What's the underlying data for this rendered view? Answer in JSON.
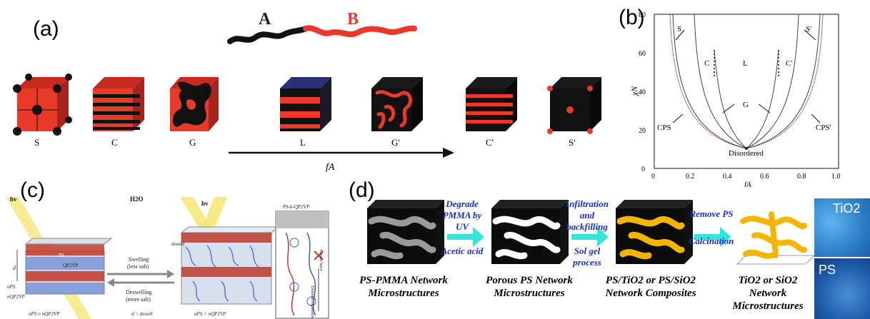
{
  "panels": {
    "a": "(a)",
    "b": "(b)",
    "c": "(c)",
    "d": "(d)"
  },
  "panel_a": {
    "chain_label_a": "A",
    "chain_label_b": "B",
    "cubes": [
      "S",
      "C",
      "G",
      "L",
      "G'",
      "C'",
      "S'"
    ],
    "axis_label": "fA"
  },
  "panel_b": {
    "ylabel": "χN",
    "xlabel": "fA",
    "y_ticks": [
      "0",
      "20",
      "40",
      "60",
      "80"
    ],
    "x_ticks": [
      "0",
      "0.2",
      "0.4",
      "0.6",
      "0.8",
      "1.0"
    ],
    "regions": [
      "S",
      "C",
      "L",
      "C'",
      "S'",
      "G",
      "CPS",
      "CPS'",
      "Disordered"
    ]
  },
  "panel_c": {
    "hv_left": "hv",
    "h2o": "H2O",
    "hv_right": "hv",
    "ps_label": "PS",
    "qp2vp_label": "QP2VP",
    "d_label": "d",
    "dswell_label": "dswell",
    "nps_label": "nPS",
    "nqp2vp_label": "nQP2VP",
    "bottom_left": "nPS ≈ nQP2VP",
    "bottom_mid": "d < dswell",
    "bottom_right": "nPS > nQP2VP",
    "swelling": "Swelling\n(less salt)",
    "deswelling": "Deswelling\n(more salt)",
    "block_label": "PS-b-QP2VP",
    "glassy": "Glassy layer",
    "uniaxial": "Uniaxial expansion"
  },
  "panel_d": {
    "step1_top": "Degrade PMMA by UV",
    "step1_bottom": "Acetic acid",
    "step2_top": "Infiltration and backfilling",
    "step2_bottom": "Sol gel process",
    "step3_top": "Remove PS",
    "step3_bottom": "Calcination",
    "cap1": "PS-PMMA Network Microstructures",
    "cap2": "Porous PS Network Microstructures",
    "cap3": "PS/TiO2 or PS/SiO2 Network Composites",
    "cap4": "TiO2 or SiO2 Network Microstructures",
    "photo1": "TiO2",
    "photo2": "PS"
  }
}
